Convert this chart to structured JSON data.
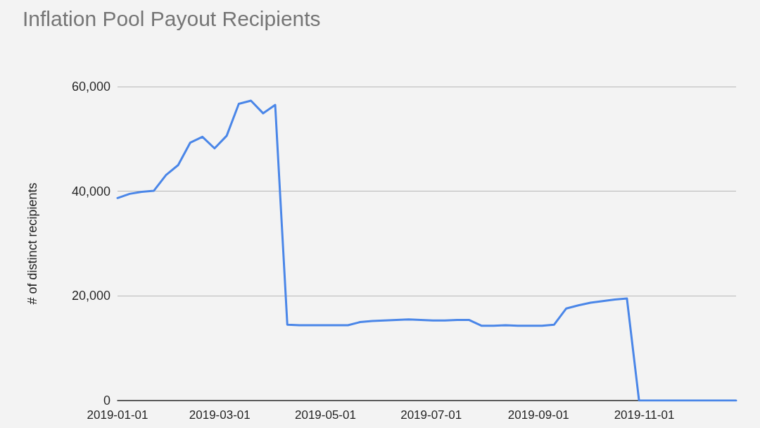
{
  "chart_data": {
    "type": "line",
    "title": "Inflation Pool Payout Recipients",
    "ylabel": "# of distinct recipients",
    "x": [
      "2019-01-01",
      "2019-01-08",
      "2019-01-15",
      "2019-01-22",
      "2019-01-29",
      "2019-02-05",
      "2019-02-12",
      "2019-02-19",
      "2019-02-26",
      "2019-03-05",
      "2019-03-12",
      "2019-03-19",
      "2019-03-26",
      "2019-04-02",
      "2019-04-09",
      "2019-04-16",
      "2019-04-23",
      "2019-04-30",
      "2019-05-07",
      "2019-05-14",
      "2019-05-21",
      "2019-05-28",
      "2019-06-04",
      "2019-06-11",
      "2019-06-18",
      "2019-06-25",
      "2019-07-02",
      "2019-07-09",
      "2019-07-16",
      "2019-07-23",
      "2019-07-30",
      "2019-08-06",
      "2019-08-13",
      "2019-08-20",
      "2019-08-27",
      "2019-09-03",
      "2019-09-10",
      "2019-09-17",
      "2019-09-24",
      "2019-10-01",
      "2019-10-08",
      "2019-10-15",
      "2019-10-22",
      "2019-10-29",
      "2019-11-05",
      "2019-11-12",
      "2019-11-19",
      "2019-11-26",
      "2019-12-03",
      "2019-12-10",
      "2019-12-17",
      "2019-12-24"
    ],
    "values": [
      38700,
      39500,
      39900,
      40100,
      43100,
      45000,
      49300,
      50400,
      48200,
      50600,
      56700,
      57300,
      54900,
      56500,
      14500,
      14400,
      14400,
      14400,
      14400,
      14400,
      15000,
      15200,
      15300,
      15400,
      15500,
      15400,
      15300,
      15300,
      15400,
      15400,
      14300,
      14300,
      14400,
      14300,
      14300,
      14300,
      14500,
      17600,
      18200,
      18700,
      19000,
      19300,
      19500,
      0,
      0,
      0,
      0,
      0,
      0,
      0,
      0,
      0
    ],
    "color": "#4a86e8",
    "xlim": [
      "2019-01-01",
      "2019-12-24"
    ],
    "xticks": [
      "2019-01-01",
      "2019-03-01",
      "2019-05-01",
      "2019-07-01",
      "2019-09-01",
      "2019-11-01"
    ],
    "ylim": [
      0,
      60000
    ],
    "yticks": [
      {
        "value": 0,
        "label": "0"
      },
      {
        "value": 20000,
        "label": "20,000"
      },
      {
        "value": 40000,
        "label": "40,000"
      },
      {
        "value": 60000,
        "label": "60,000"
      }
    ],
    "grid": "y",
    "marker": "none",
    "line_style": "solid"
  }
}
